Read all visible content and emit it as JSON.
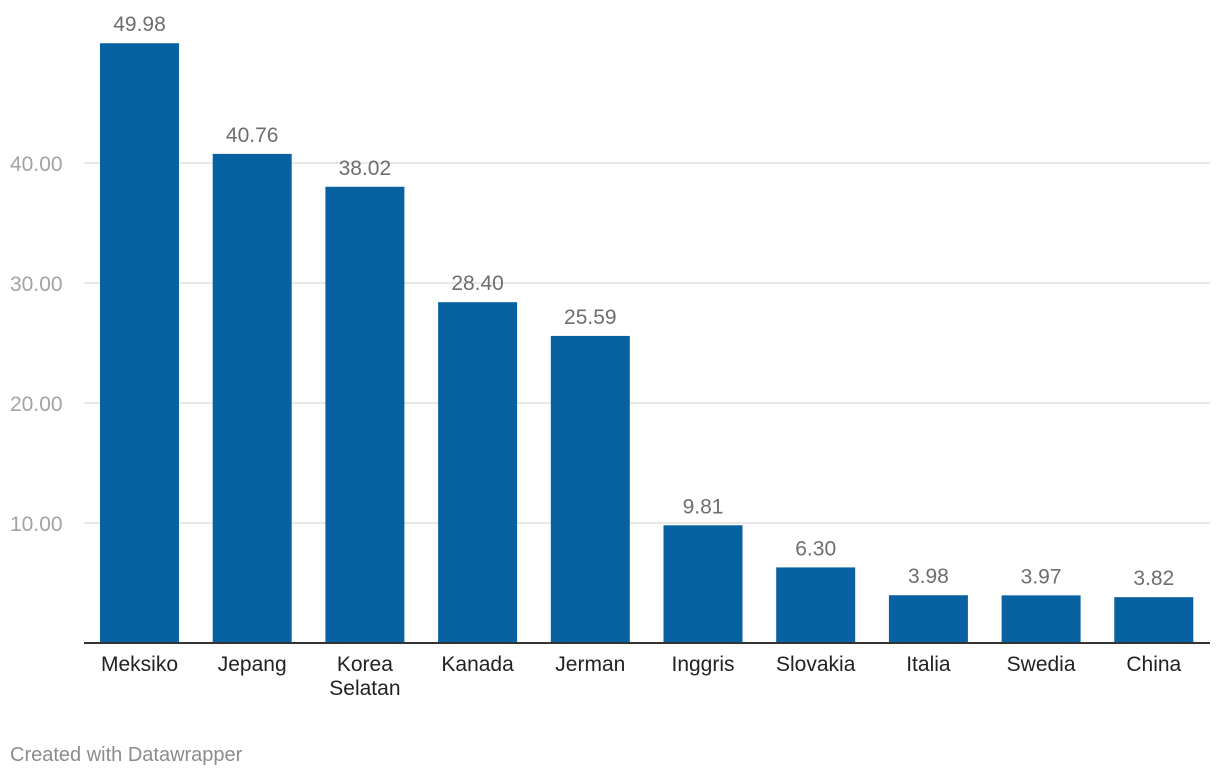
{
  "chart_data": {
    "type": "bar",
    "categories": [
      "Meksiko",
      "Jepang",
      "Korea Selatan",
      "Kanada",
      "Jerman",
      "Inggris",
      "Slovakia",
      "Italia",
      "Swedia",
      "China"
    ],
    "values": [
      49.98,
      40.76,
      38.02,
      28.4,
      25.59,
      9.81,
      6.3,
      3.98,
      3.97,
      3.82
    ],
    "value_labels": [
      "49.98",
      "40.76",
      "38.02",
      "28.40",
      "25.59",
      "9.81",
      "6.30",
      "3.98",
      "3.97",
      "3.82"
    ],
    "y_ticks": [
      10,
      20,
      30,
      40
    ],
    "y_tick_labels": [
      "10.00",
      "20.00",
      "30.00",
      "40.00"
    ],
    "ylim": [
      0,
      50
    ],
    "grid": true,
    "bar_color": "#0861a0"
  },
  "footer": {
    "credit": "Created with Datawrapper"
  }
}
